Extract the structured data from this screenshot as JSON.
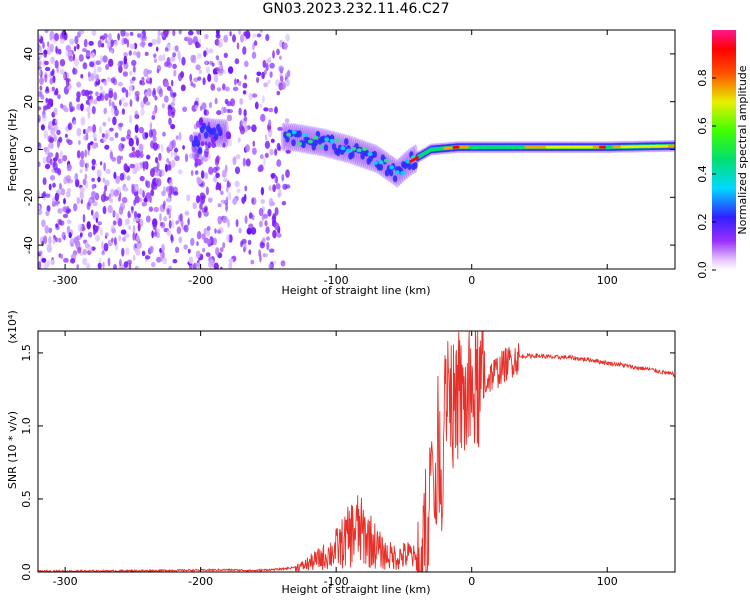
{
  "title": "GN03.2023.232.11.46.C27",
  "chart_data": [
    {
      "type": "heatmap",
      "xlabel": "Height of straight line (km)",
      "ylabel": "Frequency (Hz)",
      "xlim": [
        -320,
        150
      ],
      "ylim": [
        -50,
        50
      ],
      "xticks": [
        -300,
        -200,
        -100,
        0,
        100
      ],
      "yticks": [
        -40,
        -20,
        0,
        20,
        40
      ],
      "colorbar": {
        "label": "Normalized spectral amplitude",
        "range": [
          0,
          1
        ],
        "ticks": [
          "0.0",
          "0.2",
          "0.4",
          "0.6",
          "0.8"
        ],
        "colormap": "rainbow (white, purple, blue, cyan, green, yellow, red, magenta)"
      },
      "features": {
        "noise_region_x": [
          -320,
          -135
        ],
        "signal_track": [
          {
            "x": -200,
            "y": 8
          },
          {
            "x": -190,
            "y": 7
          },
          {
            "x": -130,
            "y": 5
          },
          {
            "x": -110,
            "y": 3
          },
          {
            "x": -90,
            "y": 0
          },
          {
            "x": -70,
            "y": -4
          },
          {
            "x": -55,
            "y": -10
          },
          {
            "x": -45,
            "y": -5
          },
          {
            "x": -30,
            "y": 0
          },
          {
            "x": -10,
            "y": 1
          },
          {
            "x": 50,
            "y": 1
          },
          {
            "x": 100,
            "y": 1
          },
          {
            "x": 150,
            "y": 1.5
          }
        ]
      }
    },
    {
      "type": "line",
      "xlabel": "Height of straight line (km)",
      "ylabel": "SNR (10 * v/v)",
      "y_multiplier": "(x10⁴)",
      "xlim": [
        -320,
        150
      ],
      "ylim": [
        0,
        1.65
      ],
      "xticks": [
        -300,
        -200,
        -100,
        0,
        100
      ],
      "yticks": [
        0.0,
        0.5,
        1.0,
        1.5
      ],
      "ytick_labels": [
        "0.0",
        "0.5",
        "1.0",
        "1.5"
      ],
      "color": "#e8302a",
      "series": [
        {
          "x": [
            -320,
            -250,
            -180,
            -160,
            -140,
            -125,
            -115,
            -105,
            -95,
            -85,
            -75,
            -65,
            -55,
            -45,
            -38,
            -33,
            -30,
            -28,
            -25,
            -22,
            -20,
            -18,
            -15,
            -12,
            -10,
            -5,
            0,
            5,
            10,
            15,
            20,
            25,
            30,
            35,
            40,
            50,
            60,
            70,
            80,
            90,
            95,
            100,
            110,
            120,
            130,
            140,
            150
          ],
          "y": [
            0.005,
            0.008,
            0.015,
            0.01,
            0.02,
            0.04,
            0.08,
            0.12,
            0.2,
            0.3,
            0.22,
            0.12,
            0.1,
            0.12,
            0.05,
            0.35,
            0.7,
            0.45,
            0.9,
            0.7,
            1.1,
            1.4,
            1.2,
            1.05,
            1.2,
            1.15,
            1.2,
            1.25,
            1.3,
            1.35,
            1.38,
            1.42,
            1.45,
            1.47,
            1.48,
            1.48,
            1.47,
            1.47,
            1.46,
            1.45,
            1.44,
            1.43,
            1.42,
            1.4,
            1.39,
            1.37,
            1.35
          ]
        }
      ]
    }
  ]
}
